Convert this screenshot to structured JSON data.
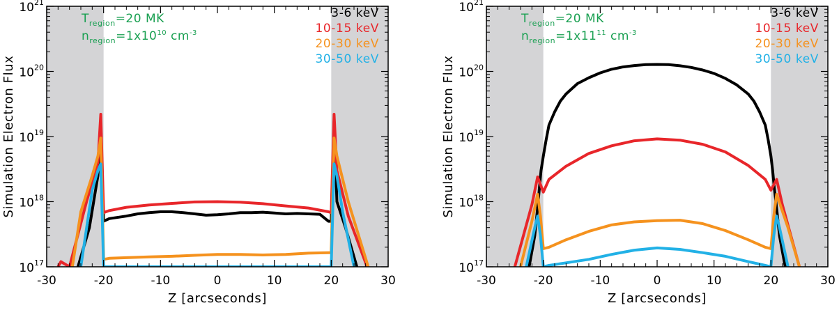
{
  "chart_data": [
    {
      "type": "line",
      "xlabel": "Z [arcseconds]",
      "ylabel": "Simulation Electron Flux",
      "xlim": [
        -30,
        30
      ],
      "ylim": [
        1e+17,
        1e+21
      ],
      "y_scale": "log",
      "x_ticks": [
        "-30",
        "-20",
        "-10",
        "0",
        "10",
        "20",
        "30"
      ],
      "y_ticks": [
        {
          "base": "10",
          "exp": "17"
        },
        {
          "base": "10",
          "exp": "18"
        },
        {
          "base": "10",
          "exp": "19"
        },
        {
          "base": "10",
          "exp": "20"
        },
        {
          "base": "10",
          "exp": "21"
        }
      ],
      "shaded_x_ranges": [
        [
          -30,
          -20
        ],
        [
          20,
          30
        ]
      ],
      "annotation": {
        "t_main": "T",
        "t_sub": "region",
        "t_rest": "=20 MK",
        "n_main": "n",
        "n_sub": "region",
        "n_mid": "=1x10",
        "n_sup": "10",
        "n_unit": " cm",
        "n_unit_sup": "-3"
      },
      "legend_position": "top-right",
      "series": [
        {
          "name": "3-6 keV",
          "color": "#000000",
          "x": [
            -24.5,
            -22.5,
            -21,
            -20.5,
            -20,
            -19,
            -16,
            -14,
            -12,
            -10,
            -8,
            -6,
            -4,
            -2,
            0,
            2,
            4,
            6,
            8,
            10,
            12,
            14,
            16,
            18,
            19.5,
            20,
            20.5,
            21,
            22.5,
            24.5
          ],
          "y": [
            1e+17,
            4e+17,
            2.5e+18,
            1.6e+19,
            5e+17,
            5.5e+17,
            6e+17,
            6.5e+17,
            6.8e+17,
            7e+17,
            7e+17,
            6.8e+17,
            6.5e+17,
            6.2e+17,
            6.3e+17,
            6.5e+17,
            6.8e+17,
            6.8e+17,
            6.9e+17,
            6.7e+17,
            6.5e+17,
            6.6e+17,
            6.5e+17,
            6.4e+17,
            5e+17,
            5e+17,
            1.7e+19,
            1e+18,
            4e+17,
            1e+17
          ]
        },
        {
          "name": "10-15 keV",
          "color": "#e8262a",
          "x": [
            -28,
            -27.5,
            -26,
            -23,
            -21,
            -20.5,
            -20,
            -19,
            -16,
            -12,
            -8,
            -4,
            0,
            4,
            8,
            12,
            16,
            19.5,
            20,
            20.5,
            21,
            23,
            26.3
          ],
          "y": [
            1e+17,
            1.2e+17,
            1e+17,
            1e+18,
            4e+18,
            2.2e+19,
            6.8e+17,
            7.3e+17,
            8.2e+17,
            8.9e+17,
            9.4e+17,
            9.9e+17,
            1e+18,
            9.8e+17,
            9.3e+17,
            8.6e+17,
            8e+17,
            7e+17,
            6.8e+17,
            2.2e+19,
            3e+18,
            6e+17,
            1e+17
          ]
        },
        {
          "name": "20-30 keV",
          "color": "#f5921e",
          "x": [
            -25.5,
            -24,
            -22,
            -21,
            -20.5,
            -20,
            -19,
            -16,
            -12,
            -8,
            -4,
            0,
            4,
            8,
            12,
            16,
            19.5,
            20,
            20.5,
            21,
            23,
            26.5
          ],
          "y": [
            1e+17,
            7e+17,
            2.5e+18,
            5e+18,
            9.5e+18,
            1.3e+17,
            1.35e+17,
            1.38e+17,
            1.42e+17,
            1.45e+17,
            1.5e+17,
            1.55e+17,
            1.55e+17,
            1.52e+17,
            1.55e+17,
            1.62e+17,
            1.65e+17,
            1.65e+17,
            9.5e+18,
            5e+18,
            1e+18,
            1e+17
          ]
        },
        {
          "name": "30-50 keV",
          "color": "#22b1e6",
          "x": [
            -24,
            -22,
            -21,
            -20.5,
            -20,
            -19.5,
            19.5,
            20,
            20.5,
            21,
            22,
            24
          ],
          "y": [
            1e+17,
            1.5e+18,
            3e+18,
            3.8e+18,
            1e+17,
            1e+17,
            1e+17,
            1e+17,
            3.8e+18,
            2.5e+18,
            7e+17,
            1e+17
          ]
        }
      ]
    },
    {
      "type": "line",
      "xlabel": "Z [arcseconds]",
      "ylabel": "Simulation Electron Flux",
      "xlim": [
        -30,
        30
      ],
      "ylim": [
        1e+17,
        1e+21
      ],
      "y_scale": "log",
      "x_ticks": [
        "-30",
        "-20",
        "-10",
        "0",
        "10",
        "20",
        "30"
      ],
      "y_ticks": [
        {
          "base": "10",
          "exp": "17"
        },
        {
          "base": "10",
          "exp": "18"
        },
        {
          "base": "10",
          "exp": "19"
        },
        {
          "base": "10",
          "exp": "20"
        },
        {
          "base": "10",
          "exp": "21"
        }
      ],
      "shaded_x_ranges": [
        [
          -30,
          -20
        ],
        [
          20,
          30
        ]
      ],
      "annotation": {
        "t_main": "T",
        "t_sub": "region",
        "t_rest": "=20 MK",
        "n_main": "n",
        "n_sub": "region",
        "n_mid": "=1x11",
        "n_sup": "11",
        "n_unit": " cm",
        "n_unit_sup": "-3"
      },
      "legend_position": "top-right",
      "series": [
        {
          "name": "3-6 keV",
          "color": "#000000",
          "x": [
            -22.5,
            -21.5,
            -21,
            -20.7,
            -20.4,
            -20,
            -19.5,
            -19,
            -18,
            -17,
            -16,
            -14,
            -12,
            -10,
            -8,
            -6,
            -4,
            -2,
            0,
            2,
            4,
            6,
            8,
            10,
            12,
            14,
            16,
            17,
            18,
            19,
            19.5,
            20,
            20.3,
            20.6,
            21,
            21.5,
            22.5
          ],
          "y": [
            1e+17,
            3e+17,
            8e+17,
            1.6e+18,
            3e+18,
            5e+18,
            9e+18,
            1.5e+19,
            2.4e+19,
            3.5e+19,
            4.5e+19,
            6.5e+19,
            8e+19,
            9.5e+19,
            1.08e+20,
            1.17e+20,
            1.23e+20,
            1.27e+20,
            1.28e+20,
            1.27e+20,
            1.22e+20,
            1.15e+20,
            1.05e+20,
            9.3e+19,
            7.8e+19,
            6.2e+19,
            4.5e+19,
            3.5e+19,
            2.4e+19,
            1.5e+19,
            9e+18,
            5e+18,
            3e+18,
            1.6e+18,
            8e+17,
            3e+17,
            1e+17
          ]
        },
        {
          "name": "10-15 keV",
          "color": "#e8262a",
          "x": [
            -25,
            -22,
            -21,
            -20,
            -19,
            -16,
            -12,
            -8,
            -4,
            0,
            4,
            8,
            12,
            16,
            19,
            20,
            21,
            22,
            25
          ],
          "y": [
            1e+17,
            9e+17,
            2.4e+18,
            1.4e+18,
            2.2e+18,
            3.5e+18,
            5.5e+18,
            7.2e+18,
            8.6e+18,
            9.2e+18,
            8.8e+18,
            7.6e+18,
            5.8e+18,
            3.6e+18,
            2.2e+18,
            1.5e+18,
            2.2e+18,
            9e+17,
            1e+17
          ]
        },
        {
          "name": "20-30 keV",
          "color": "#f5921e",
          "x": [
            -24,
            -22,
            -21,
            -20.5,
            -20,
            -19,
            -16,
            -12,
            -8,
            -4,
            0,
            4,
            8,
            12,
            16,
            19,
            20,
            20.5,
            21,
            23,
            25
          ],
          "y": [
            1e+17,
            5e+17,
            1.3e+18,
            6e+17,
            1.9e+17,
            2e+17,
            2.6e+17,
            3.5e+17,
            4.4e+17,
            4.9e+17,
            5.1e+17,
            5.2e+17,
            4.6e+17,
            3.6e+17,
            2.6e+17,
            2e+17,
            1.9e+17,
            6e+17,
            1.3e+18,
            4e+17,
            1e+17
          ]
        },
        {
          "name": "30-50 keV",
          "color": "#22b1e6",
          "x": [
            -23,
            -21.5,
            -21,
            -20.5,
            -20,
            -19,
            -16,
            -12,
            -8,
            -4,
            0,
            4,
            8,
            12,
            16,
            19,
            20,
            20.5,
            21,
            21.5,
            23
          ],
          "y": [
            1e+17,
            4e+17,
            6e+17,
            3e+17,
            1e+17,
            1.05e+17,
            1.15e+17,
            1.3e+17,
            1.55e+17,
            1.8e+17,
            1.95e+17,
            1.85e+17,
            1.65e+17,
            1.45e+17,
            1.2e+17,
            1.05e+17,
            1e+17,
            3e+17,
            6e+17,
            4e+17,
            1e+17
          ]
        }
      ]
    }
  ]
}
